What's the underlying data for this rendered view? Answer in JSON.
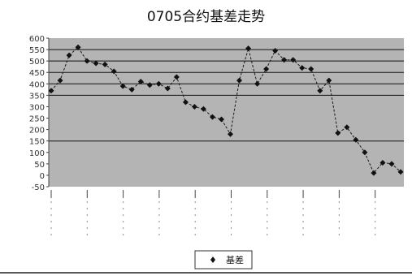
{
  "chart_data": {
    "type": "line",
    "title": "0705合约基差走势",
    "xlabel": "",
    "ylabel": "",
    "ylim": [
      -50,
      600
    ],
    "yticks": [
      600,
      550,
      500,
      450,
      400,
      350,
      300,
      250,
      200,
      150,
      100,
      50,
      0,
      -50
    ],
    "ytick_labels": [
      "600",
      "550",
      "500",
      "450",
      "400",
      "350",
      "300",
      "250",
      "200",
      "150",
      "100",
      "50",
      "0",
      "-50"
    ],
    "grid": true,
    "gridlines_at": [
      550,
      500,
      450,
      400,
      350,
      150
    ],
    "plot_background": "#b4b4b4",
    "x_tick_count": 10,
    "legend_position": "bottom",
    "series": [
      {
        "name": "",
        "color": "#1a1a1a",
        "marker": "diamond",
        "values": [
          370,
          415,
          525,
          560,
          500,
          490,
          485,
          455,
          390,
          375,
          410,
          395,
          400,
          380,
          430,
          320,
          300,
          290,
          255,
          245,
          180,
          415,
          555,
          400,
          465,
          545,
          505,
          505,
          470,
          465,
          370,
          415,
          185,
          210,
          155,
          100,
          10,
          55,
          50,
          15
        ]
      }
    ]
  },
  "legend": {
    "marker_icon": "diamond-marker-icon",
    "label": "基差"
  }
}
